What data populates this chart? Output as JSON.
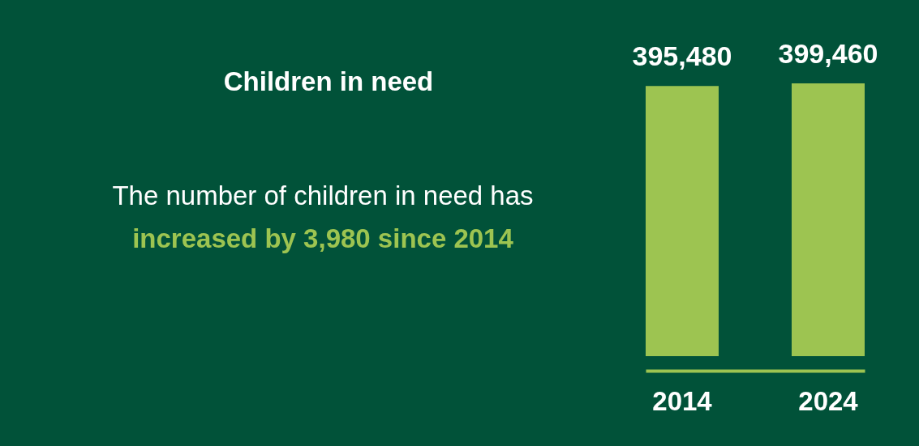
{
  "chart_data": {
    "type": "bar",
    "title": "Children in need",
    "annotations": [
      "The number of children in need has",
      "increased by 3,980 since 2014"
    ],
    "categories": [
      "2014",
      "2024"
    ],
    "values": [
      395480,
      399460
    ],
    "value_labels": [
      "395,480",
      "399,460"
    ],
    "color": "#9dc451",
    "tick_labels": "x",
    "grid": false,
    "legend": false
  }
}
